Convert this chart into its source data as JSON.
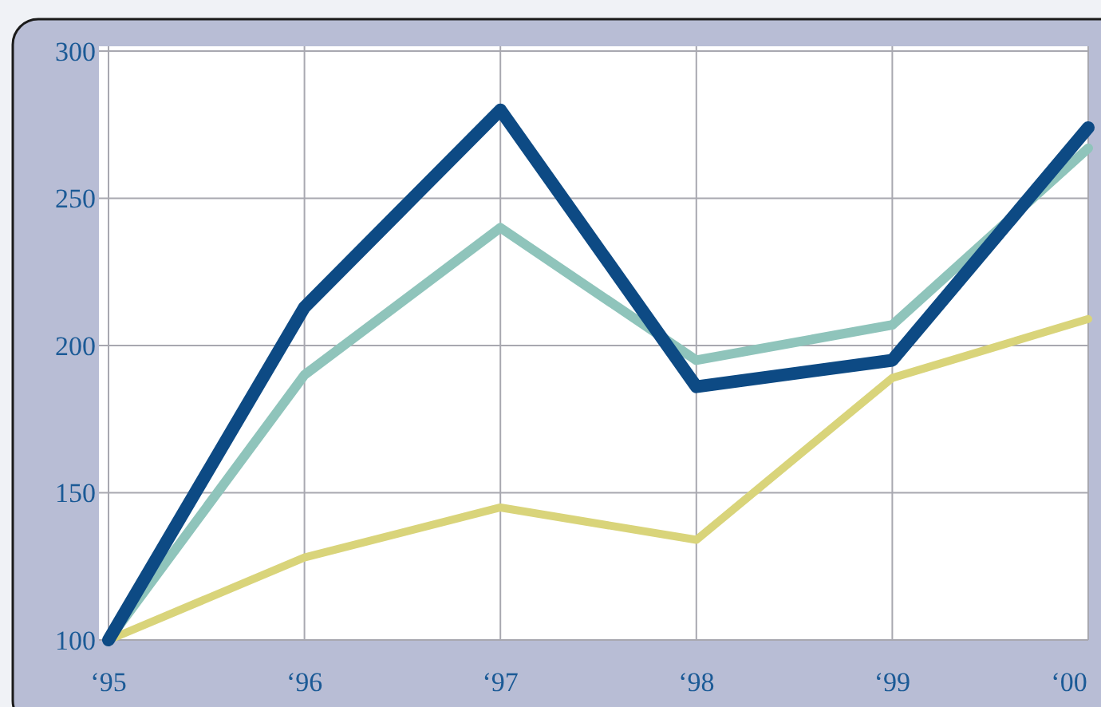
{
  "chart_data": {
    "type": "line",
    "categories": [
      "‘95",
      "‘96",
      "‘97",
      "‘98",
      "‘99",
      "‘00"
    ],
    "ylim": [
      100,
      300
    ],
    "yticks": [
      100,
      150,
      200,
      250,
      300
    ],
    "grid": true,
    "series": [
      {
        "color": "#d9d47a",
        "values": [
          100,
          128,
          145,
          134,
          189,
          209
        ]
      },
      {
        "color": "#8fc4bb",
        "values": [
          100,
          190,
          240,
          195,
          207,
          267
        ]
      },
      {
        "color": "#0d4a84",
        "values": [
          100,
          213,
          280,
          186,
          195,
          274
        ]
      }
    ]
  }
}
